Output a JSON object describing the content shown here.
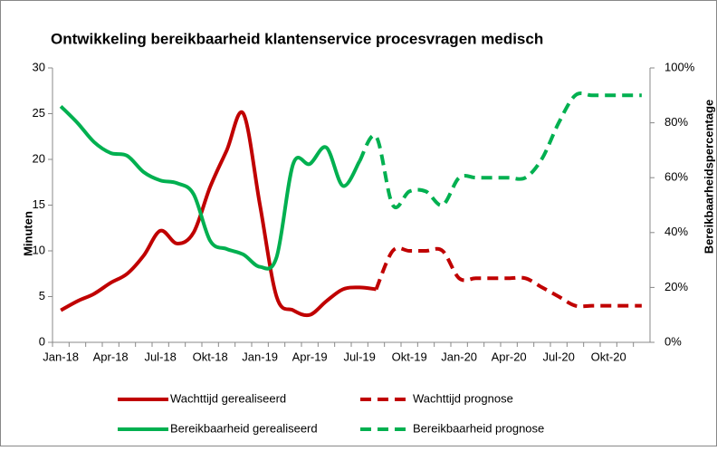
{
  "chart_data": {
    "type": "line",
    "title": "Ontwikkeling  bereikbaarheid klantenservice procesvragen medisch",
    "ylabel": "Minuten",
    "y2label": "Bereikbaarheidspercentage",
    "categories": [
      "Jan-18",
      null,
      null,
      "Apr-18",
      null,
      null,
      "Jul-18",
      null,
      null,
      "Okt-18",
      null,
      null,
      "Jan-19",
      null,
      null,
      "Apr-19",
      null,
      null,
      "Jul-19",
      null,
      null,
      "Okt-19",
      null,
      null,
      "Jan-20",
      null,
      null,
      "Apr-20",
      null,
      null,
      "Jul-20",
      null,
      null,
      "Okt-20",
      null,
      null
    ],
    "ylim": [
      0,
      30
    ],
    "yticks": [
      0,
      5,
      10,
      15,
      20,
      25,
      30
    ],
    "y2lim": [
      0,
      100
    ],
    "y2ticks": [
      {
        "value": 0,
        "label": "0%"
      },
      {
        "value": 20,
        "label": "20%"
      },
      {
        "value": 40,
        "label": "40%"
      },
      {
        "value": 60,
        "label": "60%"
      },
      {
        "value": 80,
        "label": "80%"
      },
      {
        "value": 100,
        "label": "100%"
      }
    ],
    "series": [
      {
        "name": "Wachttijd gerealiseerd",
        "color": "#c00000",
        "dashed": false,
        "values": [
          3.5,
          4.5,
          5.3,
          6.5,
          7.5,
          9.5,
          12.2,
          10.8,
          12,
          17,
          21,
          25,
          15,
          5,
          3.5,
          3,
          4.5,
          5.8,
          6,
          5.8,
          null,
          null,
          null,
          null,
          null,
          null,
          null,
          null,
          null,
          null,
          null,
          null,
          null,
          null,
          null,
          null
        ]
      },
      {
        "name": "Wachttijd prognose",
        "color": "#c00000",
        "dashed": true,
        "values": [
          null,
          null,
          null,
          null,
          null,
          null,
          null,
          null,
          null,
          null,
          null,
          null,
          null,
          null,
          null,
          null,
          null,
          null,
          null,
          5.8,
          10,
          10,
          10,
          10,
          7,
          7,
          7,
          7,
          7,
          6,
          5,
          4,
          4,
          4,
          4,
          4
        ]
      },
      {
        "name": "Bereikbaarheid gerealiseerd",
        "color": "#00b050",
        "dashed": false,
        "axis": "y2",
        "values": [
          86,
          80,
          73,
          69,
          68,
          62,
          59,
          58,
          54,
          37,
          34,
          32,
          27.5,
          31,
          65,
          65,
          71,
          57,
          66,
          null,
          null,
          null,
          null,
          null,
          null,
          null,
          null,
          null,
          null,
          null,
          null,
          null,
          null,
          null,
          null,
          null
        ]
      },
      {
        "name": "Bereikbaarheid prognose",
        "color": "#00b050",
        "dashed": true,
        "axis": "y2",
        "values": [
          null,
          null,
          null,
          null,
          null,
          null,
          null,
          null,
          null,
          null,
          null,
          null,
          null,
          null,
          null,
          null,
          null,
          null,
          66,
          75,
          50,
          55,
          55,
          50,
          60,
          60,
          60,
          60,
          60,
          67,
          80,
          90,
          90,
          90,
          90,
          90
        ]
      }
    ]
  }
}
